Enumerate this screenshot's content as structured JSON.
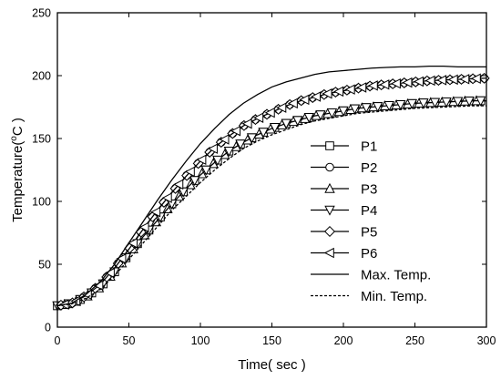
{
  "chart_data": {
    "type": "line",
    "title": "",
    "xlabel": "Time( sec )",
    "ylabel_parts": [
      "Temperature(",
      "o",
      "C )"
    ],
    "xlim": [
      0,
      300
    ],
    "ylim": [
      0,
      250
    ],
    "xticks": [
      0,
      50,
      100,
      150,
      200,
      250,
      300
    ],
    "yticks": [
      0,
      50,
      100,
      150,
      200,
      250
    ],
    "xtick_labels": [
      "0",
      "50",
      "100",
      "150",
      "200",
      "250",
      "300"
    ],
    "ytick_labels": [
      "0",
      "50",
      "100",
      "150",
      "200",
      "250"
    ],
    "grid": false,
    "legend_position": "right-center",
    "marker_interval_sec": 8,
    "series": [
      {
        "name": "P1",
        "marker": "square",
        "style": "solid",
        "color": "#000000",
        "x": [
          0,
          10,
          20,
          30,
          40,
          50,
          60,
          70,
          80,
          90,
          100,
          110,
          120,
          130,
          140,
          150,
          160,
          170,
          180,
          190,
          200,
          210,
          220,
          230,
          240,
          250,
          260,
          270,
          280,
          290,
          300
        ],
        "y": [
          17,
          19,
          24,
          32,
          44,
          58,
          72,
          85,
          98,
          110,
          121,
          131,
          140,
          147,
          153,
          158,
          162,
          165,
          168,
          170,
          172,
          174,
          175,
          176,
          177,
          178,
          178.5,
          179,
          179.5,
          180,
          180
        ]
      },
      {
        "name": "P2",
        "marker": "circle",
        "style": "solid",
        "color": "#000000",
        "x": [
          0,
          10,
          20,
          30,
          40,
          50,
          60,
          70,
          80,
          90,
          100,
          110,
          120,
          130,
          140,
          150,
          160,
          170,
          180,
          190,
          200,
          210,
          220,
          230,
          240,
          250,
          260,
          270,
          280,
          290,
          300
        ],
        "y": [
          17,
          19,
          25,
          34,
          47,
          62,
          78,
          93,
          107,
          120,
          132,
          143,
          152,
          160,
          166,
          171,
          176,
          180,
          183,
          186,
          188,
          190,
          192,
          193,
          194,
          195,
          196,
          196.5,
          197,
          197.5,
          198
        ]
      },
      {
        "name": "P3",
        "marker": "triangle-up",
        "style": "solid",
        "color": "#000000",
        "x": [
          0,
          10,
          20,
          30,
          40,
          50,
          60,
          70,
          80,
          90,
          100,
          110,
          120,
          130,
          140,
          150,
          160,
          170,
          180,
          190,
          200,
          210,
          220,
          230,
          240,
          250,
          260,
          270,
          280,
          290,
          300
        ],
        "y": [
          17,
          19,
          24,
          32,
          44,
          58,
          72,
          85,
          98,
          110,
          121,
          131,
          140,
          147,
          153,
          158,
          162,
          165,
          168,
          170,
          172,
          174,
          175,
          176,
          177,
          178,
          178.5,
          179,
          179.5,
          180,
          180
        ]
      },
      {
        "name": "P4",
        "marker": "triangle-down",
        "style": "solid",
        "color": "#000000",
        "x": [
          0,
          10,
          20,
          30,
          40,
          50,
          60,
          70,
          80,
          90,
          100,
          110,
          120,
          130,
          140,
          150,
          160,
          170,
          180,
          190,
          200,
          210,
          220,
          230,
          240,
          250,
          260,
          270,
          280,
          290,
          300
        ],
        "y": [
          17,
          19,
          24,
          32,
          44,
          58,
          72,
          85,
          98,
          110,
          121,
          131,
          140,
          147,
          153,
          158,
          162,
          165,
          168,
          170,
          172,
          174,
          175,
          176,
          177,
          178,
          178.5,
          179,
          179.5,
          180,
          180
        ]
      },
      {
        "name": "P5",
        "marker": "diamond",
        "style": "solid",
        "color": "#000000",
        "x": [
          0,
          10,
          20,
          30,
          40,
          50,
          60,
          70,
          80,
          90,
          100,
          110,
          120,
          130,
          140,
          150,
          160,
          170,
          180,
          190,
          200,
          210,
          220,
          230,
          240,
          250,
          260,
          270,
          280,
          290,
          300
        ],
        "y": [
          17,
          19,
          25,
          34,
          47,
          62,
          78,
          93,
          107,
          120,
          132,
          143,
          152,
          160,
          166,
          171,
          176,
          180,
          183,
          186,
          188,
          190,
          192,
          193,
          194,
          195,
          196,
          196.5,
          197,
          197.5,
          198
        ]
      },
      {
        "name": "P6",
        "marker": "triangle-left",
        "style": "solid",
        "color": "#000000",
        "x": [
          0,
          10,
          20,
          30,
          40,
          50,
          60,
          70,
          80,
          90,
          100,
          110,
          120,
          130,
          140,
          150,
          160,
          170,
          180,
          190,
          200,
          210,
          220,
          230,
          240,
          250,
          260,
          270,
          280,
          290,
          300
        ],
        "y": [
          17,
          19,
          25,
          34,
          47,
          62,
          78,
          93,
          107,
          120,
          132,
          143,
          152,
          160,
          166,
          171,
          176,
          180,
          183,
          186,
          188,
          190,
          192,
          193,
          194,
          195,
          196,
          196.5,
          197,
          197.5,
          198
        ]
      },
      {
        "name": "Max. Temp.",
        "marker": "none",
        "style": "solid",
        "color": "#000000",
        "x": [
          0,
          10,
          20,
          30,
          40,
          50,
          60,
          70,
          80,
          90,
          100,
          110,
          120,
          130,
          140,
          150,
          160,
          170,
          180,
          190,
          200,
          210,
          220,
          230,
          240,
          250,
          260,
          270,
          280,
          290,
          300
        ],
        "y": [
          17,
          19,
          26,
          36,
          50,
          67,
          84,
          101,
          117,
          132,
          146,
          158,
          169,
          178,
          185,
          191,
          195,
          198,
          201,
          203,
          204,
          205,
          206,
          206.5,
          207,
          207,
          207.5,
          207.5,
          207,
          207,
          207
        ]
      },
      {
        "name": "Min. Temp.",
        "marker": "none",
        "style": "dashed",
        "color": "#000000",
        "x": [
          0,
          10,
          20,
          30,
          40,
          50,
          60,
          70,
          80,
          90,
          100,
          110,
          120,
          130,
          140,
          150,
          160,
          170,
          180,
          190,
          200,
          210,
          220,
          230,
          240,
          250,
          260,
          270,
          280,
          290,
          300
        ],
        "y": [
          17,
          18.5,
          23,
          30,
          41,
          54,
          67,
          80,
          93,
          104,
          115,
          125,
          134,
          142,
          148,
          153,
          157,
          161,
          164,
          166,
          168,
          170,
          171,
          172,
          173,
          174,
          174.5,
          175,
          175.5,
          176,
          176
        ]
      }
    ]
  }
}
